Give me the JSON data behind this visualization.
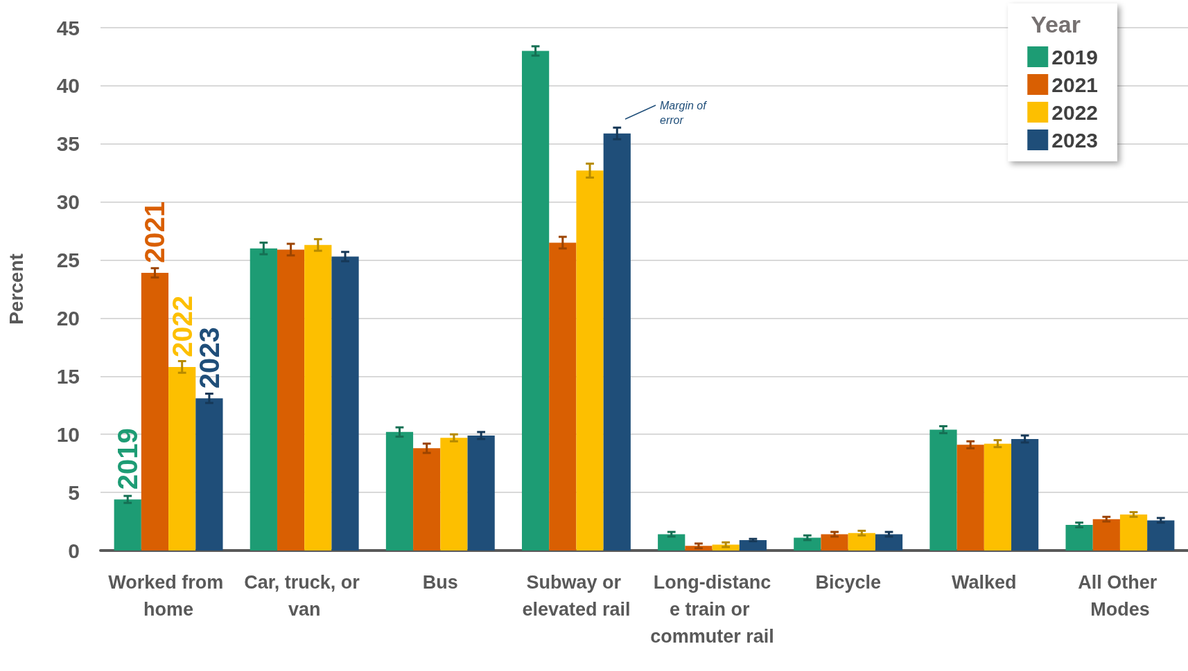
{
  "chart_data": {
    "type": "bar",
    "categories": [
      "Worked from home",
      "Car, truck, or van",
      "Bus",
      "Subway or elevated rail",
      "Long-distance train or commuter rail",
      "Bicycle",
      "Walked",
      "All Other Modes"
    ],
    "ylabel": "Percent",
    "legend_title": "Year",
    "series": [
      {
        "name": "2019",
        "color": "#1d9c74",
        "values": [
          4.4,
          26.0,
          10.2,
          43.0,
          1.4,
          1.1,
          10.4,
          2.2
        ],
        "errors": [
          0.3,
          0.5,
          0.4,
          0.4,
          0.2,
          0.2,
          0.3,
          0.2
        ]
      },
      {
        "name": "2021",
        "color": "#d95f02",
        "values": [
          23.9,
          25.9,
          8.8,
          26.5,
          0.4,
          1.4,
          9.1,
          2.7
        ],
        "errors": [
          0.4,
          0.5,
          0.4,
          0.5,
          0.2,
          0.2,
          0.3,
          0.2
        ]
      },
      {
        "name": "2022",
        "color": "#fdbf00",
        "values": [
          15.8,
          26.3,
          9.7,
          32.7,
          0.5,
          1.5,
          9.2,
          3.1
        ],
        "errors": [
          0.5,
          0.5,
          0.3,
          0.6,
          0.2,
          0.2,
          0.3,
          0.2
        ]
      },
      {
        "name": "2023",
        "color": "#1f4e79",
        "values": [
          13.1,
          25.3,
          9.9,
          35.9,
          0.9,
          1.4,
          9.6,
          2.6
        ],
        "errors": [
          0.4,
          0.4,
          0.3,
          0.5,
          0.1,
          0.2,
          0.3,
          0.2
        ]
      }
    ],
    "ylim": [
      0,
      45
    ],
    "yticks": [
      0,
      5,
      10,
      15,
      20,
      25,
      30,
      35,
      40,
      45
    ],
    "grid": "y",
    "legend": "top right",
    "annotations": [
      "Margin of error"
    ]
  }
}
